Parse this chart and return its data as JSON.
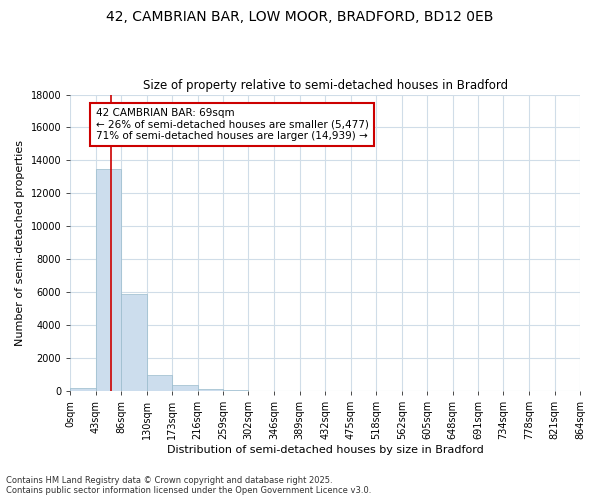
{
  "title1": "42, CAMBRIAN BAR, LOW MOOR, BRADFORD, BD12 0EB",
  "title2": "Size of property relative to semi-detached houses in Bradford",
  "xlabel": "Distribution of semi-detached houses by size in Bradford",
  "ylabel": "Number of semi-detached properties",
  "bin_labels": [
    "0sqm",
    "43sqm",
    "86sqm",
    "130sqm",
    "173sqm",
    "216sqm",
    "259sqm",
    "302sqm",
    "346sqm",
    "389sqm",
    "432sqm",
    "475sqm",
    "518sqm",
    "562sqm",
    "605sqm",
    "648sqm",
    "691sqm",
    "734sqm",
    "778sqm",
    "821sqm",
    "864sqm"
  ],
  "bin_edges": [
    0,
    43,
    86,
    130,
    173,
    216,
    259,
    302,
    346,
    389,
    432,
    475,
    518,
    562,
    605,
    648,
    691,
    734,
    778,
    821,
    864
  ],
  "bar_values": [
    200,
    13500,
    5900,
    1000,
    350,
    150,
    80,
    30,
    10,
    5,
    2,
    1,
    0,
    0,
    0,
    0,
    0,
    0,
    0,
    0
  ],
  "bar_color": "#ccdded",
  "bar_edgecolor": "#99bbcc",
  "property_value": 69,
  "annotation_title": "42 CAMBRIAN BAR: 69sqm",
  "annotation_line1": "← 26% of semi-detached houses are smaller (5,477)",
  "annotation_line2": "71% of semi-detached houses are larger (14,939) →",
  "annotation_box_color": "#ffffff",
  "annotation_box_edgecolor": "#cc0000",
  "red_line_color": "#cc0000",
  "ylim": [
    0,
    18000
  ],
  "yticks": [
    0,
    2000,
    4000,
    6000,
    8000,
    10000,
    12000,
    14000,
    16000,
    18000
  ],
  "footer1": "Contains HM Land Registry data © Crown copyright and database right 2025.",
  "footer2": "Contains public sector information licensed under the Open Government Licence v3.0.",
  "background_color": "#ffffff",
  "grid_color": "#d0dde8",
  "title_fontsize": 10,
  "subtitle_fontsize": 8.5,
  "axis_label_fontsize": 8,
  "tick_fontsize": 7,
  "footer_fontsize": 6
}
